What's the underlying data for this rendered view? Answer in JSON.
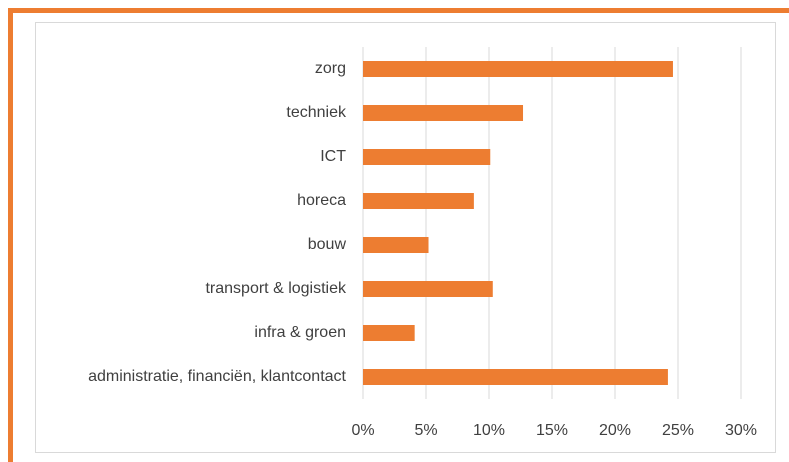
{
  "chart_data": {
    "type": "bar",
    "orientation": "horizontal",
    "categories": [
      "zorg",
      "techniek",
      "ICT",
      "horeca",
      "bouw",
      "transport & logistiek",
      "infra & groen",
      "administratie, financiën, klantcontact"
    ],
    "values": [
      24.6,
      12.7,
      10.1,
      8.8,
      5.2,
      10.3,
      4.1,
      24.2
    ],
    "color": "#ed7d31",
    "xlim": [
      0,
      30
    ],
    "xticks": [
      {
        "value": 0,
        "label": "0%"
      },
      {
        "value": 5,
        "label": "5%"
      },
      {
        "value": 10,
        "label": "10%"
      },
      {
        "value": 15,
        "label": "15%"
      },
      {
        "value": 20,
        "label": "20%"
      },
      {
        "value": 25,
        "label": "25%"
      },
      {
        "value": 30,
        "label": "30%"
      }
    ],
    "grid": true
  }
}
